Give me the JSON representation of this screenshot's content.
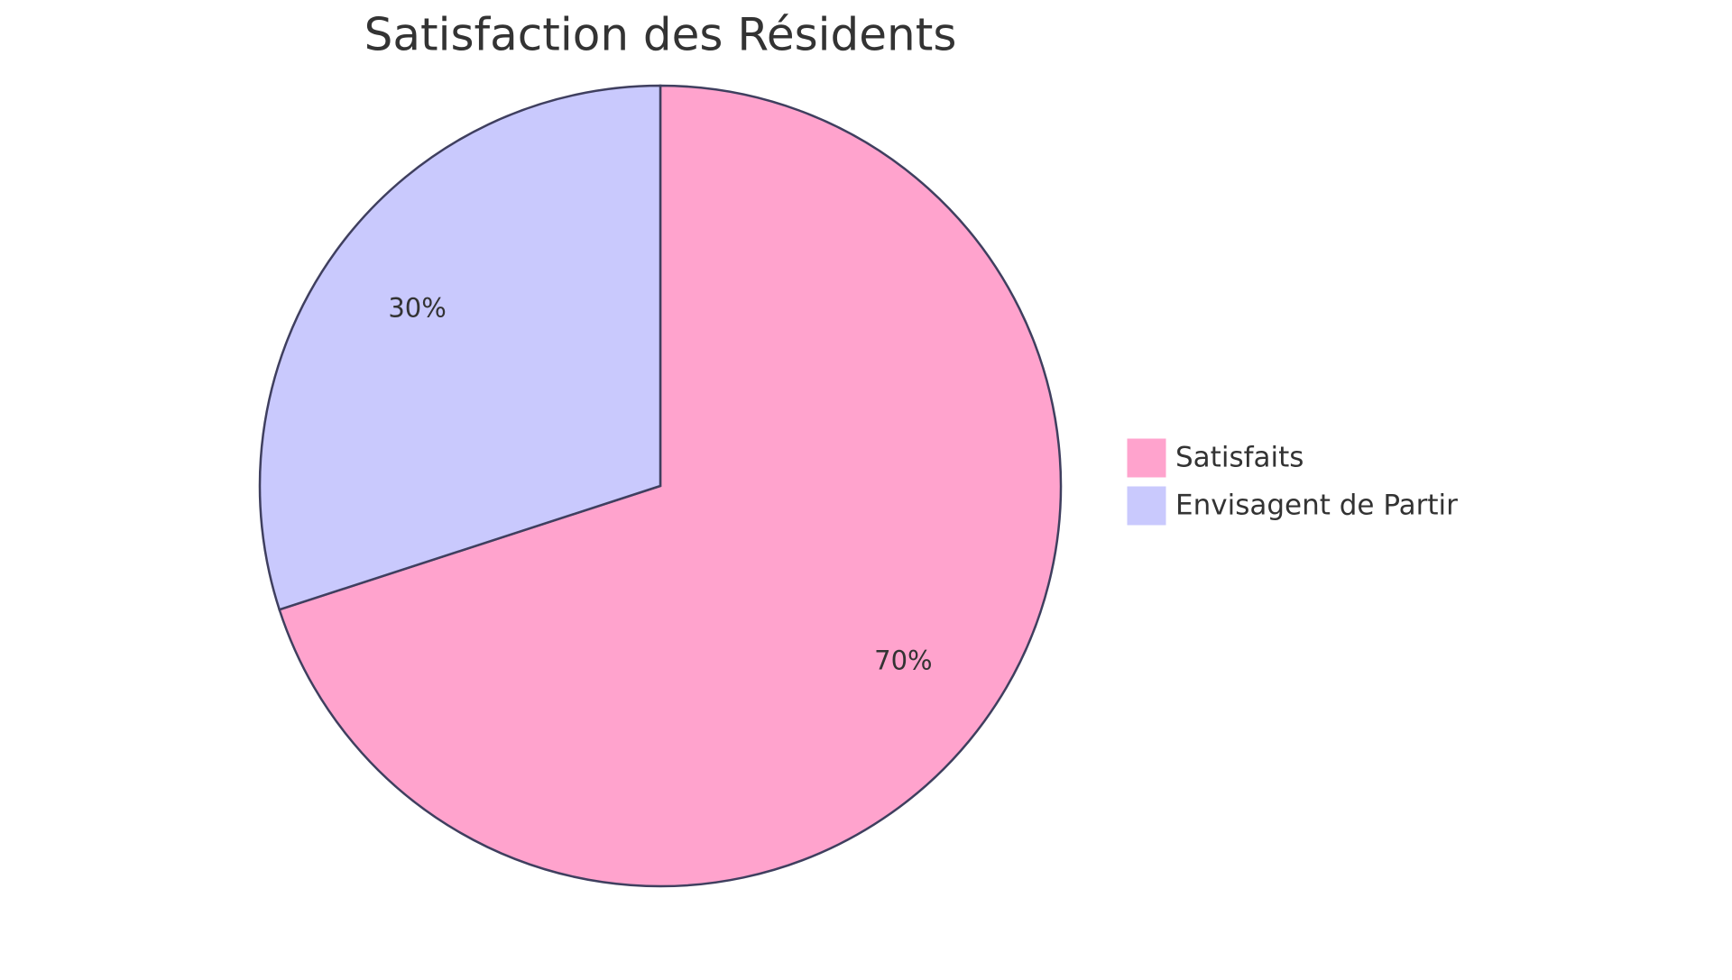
{
  "chart_data": {
    "type": "pie",
    "title": "Satisfaction des Résidents",
    "categories": [
      "Satisfaits",
      "Envisagent de Partir"
    ],
    "values": [
      70,
      30
    ],
    "value_labels": [
      "70%",
      "30%"
    ],
    "colors": [
      "#ffa3cd",
      "#c9c9fd"
    ],
    "legend": "right"
  }
}
